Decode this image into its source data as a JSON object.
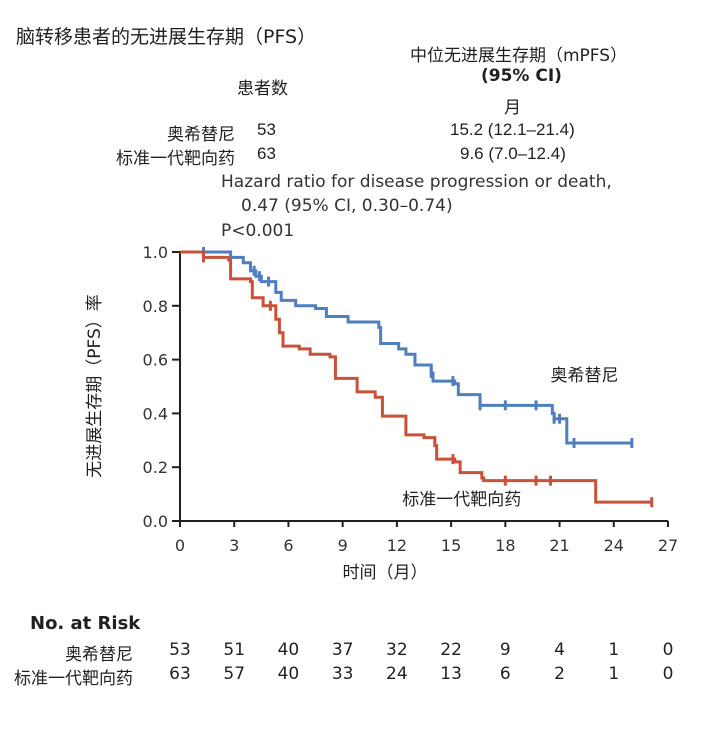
{
  "header": {
    "title": "脑转移患者的无进展生存期（PFS）",
    "n_header": "患者数",
    "mpfs_header": "中位无进展生存期（mPFS）",
    "ci_header": "(95% CI)",
    "unit_header": "月",
    "groups": [
      {
        "name": "奥希替尼",
        "n": "53",
        "mpfs": "15.2 (12.1–21.4)"
      },
      {
        "name": "标准一代靶向药",
        "n": "63",
        "mpfs": "9.6 (7.0–12.4)"
      }
    ],
    "hazard_line1": "Hazard ratio for disease progression or death,",
    "hazard_line2": "0.47 (95% CI, 0.30–0.74)",
    "p_value": "P<0.001"
  },
  "risk_table": {
    "title": "No. at Risk",
    "rows": [
      {
        "label": "奥希替尼",
        "values": [
          "53",
          "51",
          "40",
          "37",
          "32",
          "22",
          "9",
          "4",
          "1",
          "0"
        ]
      },
      {
        "label": "标准一代靶向药",
        "values": [
          "63",
          "57",
          "40",
          "33",
          "24",
          "13",
          "6",
          "2",
          "1",
          "0"
        ]
      }
    ]
  },
  "chart_data": {
    "type": "line",
    "subtype": "kaplan-meier step",
    "title": "脑转移患者的无进展生存期（PFS）",
    "xlabel": "时间（月）",
    "ylabel": "无进展生存期（PFS）率",
    "xlim": [
      0,
      27
    ],
    "ylim": [
      0,
      1.0
    ],
    "xticks": [
      "0",
      "3",
      "6",
      "9",
      "12",
      "15",
      "18",
      "21",
      "24",
      "27"
    ],
    "yticks": [
      "0.0",
      "0.2",
      "0.4",
      "0.6",
      "0.8",
      "1.0"
    ],
    "grid": false,
    "colors": {
      "osimertinib": "#4f7fbf",
      "standard": "#c8513a"
    },
    "series": [
      {
        "name": "奥希替尼",
        "label_position": [
          20.5,
          0.52
        ],
        "steps": [
          [
            0,
            1.0
          ],
          [
            2.8,
            0.98
          ],
          [
            3.5,
            0.96
          ],
          [
            3.9,
            0.93
          ],
          [
            4.2,
            0.91
          ],
          [
            4.5,
            0.89
          ],
          [
            5.3,
            0.85
          ],
          [
            5.6,
            0.82
          ],
          [
            6.4,
            0.8
          ],
          [
            7.5,
            0.79
          ],
          [
            8.1,
            0.76
          ],
          [
            9.3,
            0.74
          ],
          [
            11.0,
            0.72
          ],
          [
            11.1,
            0.66
          ],
          [
            12.1,
            0.64
          ],
          [
            12.5,
            0.62
          ],
          [
            13.0,
            0.58
          ],
          [
            13.9,
            0.55
          ],
          [
            14.0,
            0.52
          ],
          [
            15.2,
            0.51
          ],
          [
            15.4,
            0.47
          ],
          [
            16.6,
            0.43
          ],
          [
            20.6,
            0.4
          ],
          [
            20.7,
            0.38
          ],
          [
            21.4,
            0.29
          ],
          [
            25.0,
            0.29
          ]
        ],
        "censor_x": [
          1.3,
          4.1,
          4.4,
          4.9,
          13.9,
          15.1,
          16.6,
          18.0,
          19.7,
          20.7,
          21.0,
          21.8,
          25.0
        ]
      },
      {
        "name": "标准一代靶向药",
        "label_position": [
          12.3,
          0.06
        ],
        "steps": [
          [
            0,
            1.0
          ],
          [
            1.3,
            0.98
          ],
          [
            2.7,
            0.97
          ],
          [
            2.8,
            0.9
          ],
          [
            3.9,
            0.89
          ],
          [
            4.0,
            0.83
          ],
          [
            4.6,
            0.8
          ],
          [
            5.3,
            0.75
          ],
          [
            5.5,
            0.7
          ],
          [
            5.7,
            0.65
          ],
          [
            6.6,
            0.64
          ],
          [
            7.2,
            0.62
          ],
          [
            8.3,
            0.61
          ],
          [
            8.6,
            0.53
          ],
          [
            9.7,
            0.53
          ],
          [
            9.8,
            0.48
          ],
          [
            10.8,
            0.46
          ],
          [
            11.2,
            0.39
          ],
          [
            12.3,
            0.39
          ],
          [
            12.5,
            0.32
          ],
          [
            13.5,
            0.31
          ],
          [
            14.1,
            0.28
          ],
          [
            14.2,
            0.23
          ],
          [
            15.2,
            0.22
          ],
          [
            15.5,
            0.18
          ],
          [
            16.7,
            0.16
          ],
          [
            16.8,
            0.15
          ],
          [
            23.0,
            0.15
          ],
          [
            23.0,
            0.07
          ],
          [
            26.1,
            0.07
          ]
        ],
        "censor_x": [
          1.3,
          5.0,
          15.1,
          18.0,
          19.7,
          20.5,
          26.1
        ]
      }
    ]
  }
}
